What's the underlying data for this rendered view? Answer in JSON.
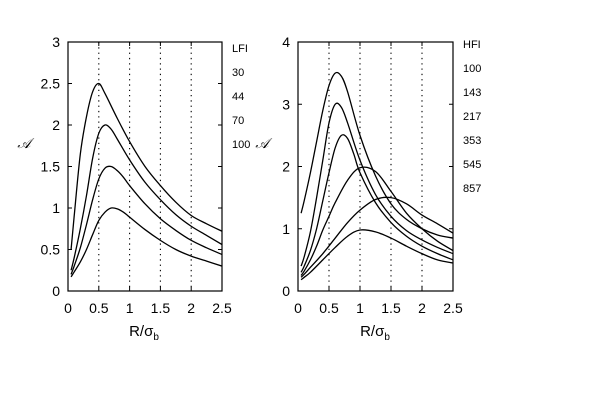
{
  "chart_data": [
    {
      "type": "line",
      "xlabel": "R/σ",
      "xlabel_sub": "b",
      "ylabel": "𝒜",
      "xlim": [
        0,
        2.5
      ],
      "ylim": [
        0,
        3
      ],
      "xticks": [
        "0",
        "0.5",
        "1",
        "1.5",
        "2",
        "2.5"
      ],
      "yticks": [
        "0",
        "0.5",
        "1",
        "1.5",
        "2",
        "2.5",
        "3"
      ],
      "vlines": [
        0.5,
        1,
        1.5,
        2
      ],
      "legend_title": "LFI",
      "legend_entries": [
        "30",
        "44",
        "70",
        "100"
      ],
      "series": [
        {
          "x": [
            0.05,
            0.1,
            0.2,
            0.3,
            0.4,
            0.5,
            0.6,
            0.8,
            1.0,
            1.25,
            1.5,
            1.75,
            2.0,
            2.25,
            2.5
          ],
          "y": [
            0.5,
            0.9,
            1.65,
            2.1,
            2.4,
            2.5,
            2.38,
            2.08,
            1.8,
            1.5,
            1.27,
            1.07,
            0.91,
            0.81,
            0.72
          ]
        },
        {
          "x": [
            0.05,
            0.1,
            0.2,
            0.3,
            0.4,
            0.5,
            0.6,
            0.7,
            0.8,
            1.0,
            1.25,
            1.5,
            1.75,
            2.0,
            2.25,
            2.5
          ],
          "y": [
            0.25,
            0.4,
            0.75,
            1.15,
            1.6,
            1.9,
            2.0,
            1.95,
            1.83,
            1.58,
            1.31,
            1.1,
            0.92,
            0.78,
            0.67,
            0.56
          ]
        },
        {
          "x": [
            0.05,
            0.1,
            0.2,
            0.3,
            0.4,
            0.5,
            0.6,
            0.7,
            0.8,
            0.9,
            1.0,
            1.25,
            1.5,
            1.75,
            2.0,
            2.25,
            2.5
          ],
          "y": [
            0.2,
            0.3,
            0.52,
            0.8,
            1.1,
            1.35,
            1.48,
            1.5,
            1.45,
            1.37,
            1.27,
            1.05,
            0.87,
            0.73,
            0.61,
            0.52,
            0.44
          ]
        },
        {
          "x": [
            0.05,
            0.1,
            0.2,
            0.3,
            0.4,
            0.5,
            0.6,
            0.7,
            0.8,
            0.9,
            1.0,
            1.25,
            1.5,
            1.75,
            2.0,
            2.25,
            2.5
          ],
          "y": [
            0.17,
            0.23,
            0.35,
            0.5,
            0.68,
            0.85,
            0.95,
            1.0,
            0.99,
            0.95,
            0.89,
            0.74,
            0.61,
            0.5,
            0.42,
            0.36,
            0.3
          ]
        }
      ]
    },
    {
      "type": "line",
      "xlabel": "R/σ",
      "xlabel_sub": "b",
      "ylabel": "𝒜",
      "xlim": [
        0,
        2.5
      ],
      "ylim": [
        0,
        4
      ],
      "xticks": [
        "0",
        "0.5",
        "1",
        "1.5",
        "2",
        "2.5"
      ],
      "yticks": [
        "0",
        "1",
        "2",
        "3",
        "4"
      ],
      "vlines": [
        0.5,
        1,
        1.5,
        2
      ],
      "legend_title": "HFI",
      "legend_entries": [
        "100",
        "143",
        "217",
        "353",
        "545",
        "857"
      ],
      "series": [
        {
          "x": [
            0.05,
            0.1,
            0.2,
            0.3,
            0.4,
            0.5,
            0.6,
            0.7,
            0.8,
            1.0,
            1.25,
            1.5,
            1.75,
            2.0,
            2.25,
            2.5
          ],
          "y": [
            1.25,
            1.45,
            1.9,
            2.4,
            2.9,
            3.3,
            3.5,
            3.45,
            3.2,
            2.5,
            1.85,
            1.4,
            1.15,
            1.0,
            0.9,
            0.85
          ]
        },
        {
          "x": [
            0.05,
            0.1,
            0.2,
            0.3,
            0.4,
            0.5,
            0.6,
            0.7,
            0.8,
            1.0,
            1.25,
            1.5,
            1.75,
            2.0,
            2.25,
            2.5
          ],
          "y": [
            0.4,
            0.55,
            0.95,
            1.5,
            2.1,
            2.7,
            3.0,
            2.95,
            2.7,
            2.1,
            1.55,
            1.2,
            0.97,
            0.82,
            0.7,
            0.6
          ]
        },
        {
          "x": [
            0.05,
            0.1,
            0.2,
            0.3,
            0.4,
            0.5,
            0.6,
            0.7,
            0.8,
            0.9,
            1.0,
            1.25,
            1.5,
            1.75,
            2.0,
            2.25,
            2.5
          ],
          "y": [
            0.3,
            0.4,
            0.65,
            1.0,
            1.45,
            1.9,
            2.3,
            2.5,
            2.45,
            2.2,
            1.9,
            1.42,
            1.1,
            0.88,
            0.72,
            0.6,
            0.5
          ]
        },
        {
          "x": [
            0.05,
            0.1,
            0.2,
            0.3,
            0.4,
            0.5,
            0.6,
            0.8,
            1.0,
            1.25,
            1.5,
            1.75,
            2.0,
            2.25,
            2.5
          ],
          "y": [
            0.25,
            0.32,
            0.5,
            0.72,
            0.98,
            1.2,
            1.42,
            1.78,
            1.98,
            1.92,
            1.6,
            1.25,
            1.0,
            0.8,
            0.65
          ]
        },
        {
          "x": [
            0.05,
            0.1,
            0.2,
            0.4,
            0.6,
            0.8,
            1.0,
            1.25,
            1.5,
            1.75,
            2.0,
            2.25,
            2.5
          ],
          "y": [
            0.22,
            0.27,
            0.38,
            0.6,
            0.85,
            1.1,
            1.3,
            1.47,
            1.5,
            1.4,
            1.22,
            1.08,
            0.93
          ]
        },
        {
          "x": [
            0.05,
            0.1,
            0.2,
            0.4,
            0.6,
            0.8,
            1.0,
            1.25,
            1.5,
            1.75,
            2.0,
            2.25,
            2.5
          ],
          "y": [
            0.18,
            0.22,
            0.3,
            0.5,
            0.7,
            0.88,
            0.98,
            0.95,
            0.85,
            0.72,
            0.6,
            0.5,
            0.45
          ]
        }
      ]
    }
  ]
}
